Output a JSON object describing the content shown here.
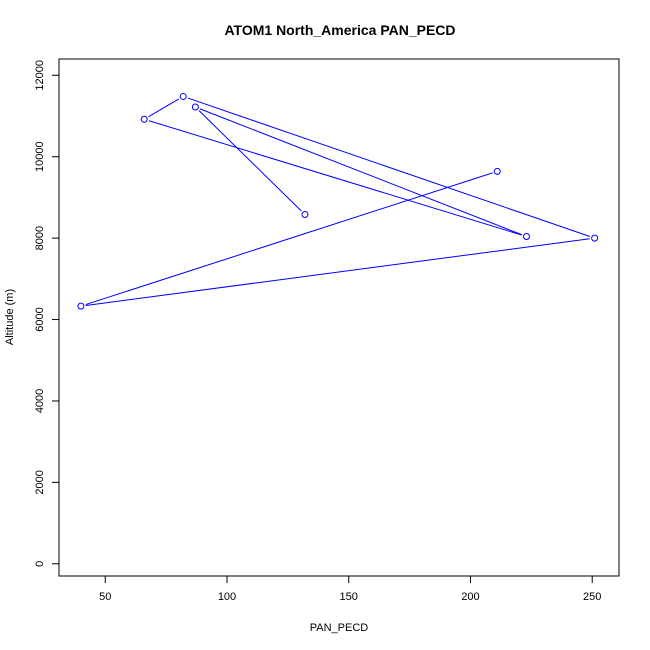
{
  "chart_data": {
    "type": "line",
    "title": "ATOM1 North_America PAN_PECD",
    "xlabel": "PAN_PECD",
    "ylabel": "Altitude (m)",
    "xlim": [
      31,
      261
    ],
    "ylim": [
      -300,
      12400
    ],
    "x_ticks": [
      50,
      100,
      150,
      200,
      250
    ],
    "y_ticks": [
      0,
      2000,
      4000,
      6000,
      8000,
      10000,
      12000
    ],
    "grid": false,
    "color": "#0000ff",
    "series": [
      {
        "points": [
          {
            "x": 132,
            "y": 8580
          },
          {
            "x": 87,
            "y": 11220
          },
          {
            "x": 223,
            "y": 8040
          },
          {
            "x": 66,
            "y": 10920
          },
          {
            "x": 82,
            "y": 11480
          },
          {
            "x": 251,
            "y": 8000
          },
          {
            "x": 40,
            "y": 6330
          },
          {
            "x": 211,
            "y": 9640
          }
        ]
      }
    ]
  }
}
